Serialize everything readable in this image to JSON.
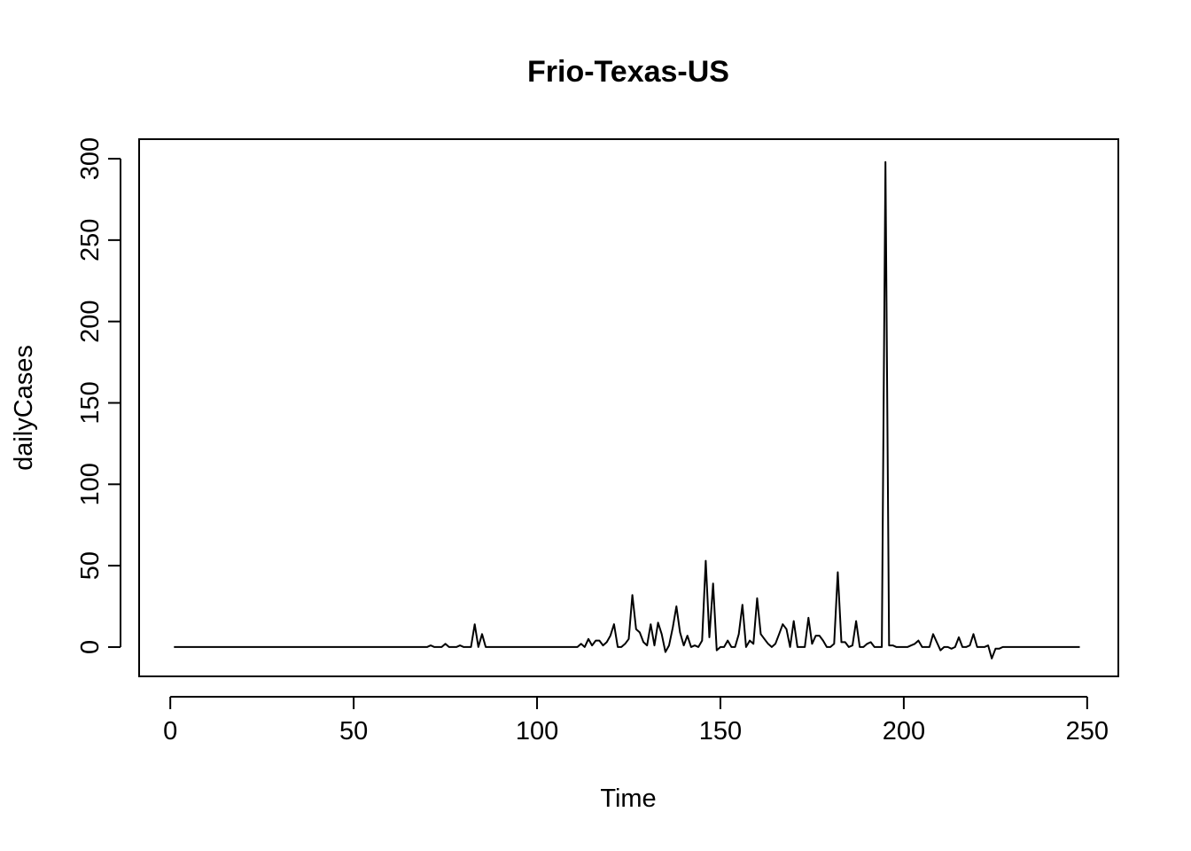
{
  "chart_data": {
    "type": "line",
    "title": "Frio-Texas-US",
    "xlabel": "Time",
    "ylabel": "dailyCases",
    "xlim": [
      -8.5,
      258.5
    ],
    "ylim": [
      -18,
      312
    ],
    "xticks": [
      0,
      50,
      100,
      150,
      200,
      250
    ],
    "yticks": [
      0,
      50,
      100,
      150,
      200,
      250,
      300
    ],
    "xtick_labels": [
      "0",
      "50",
      "100",
      "150",
      "200",
      "250"
    ],
    "ytick_labels": [
      "0",
      "50",
      "100",
      "150",
      "200",
      "250",
      "300"
    ],
    "line_color": "#000000",
    "grid": false,
    "legend": "none",
    "series": [
      {
        "x": [
          1,
          70,
          71,
          72,
          73,
          74,
          75,
          76,
          77,
          78,
          79,
          80,
          81,
          82,
          83,
          84,
          85,
          86,
          87,
          111,
          112,
          113,
          114,
          115,
          116,
          117,
          118,
          119,
          120,
          121,
          122,
          123,
          124,
          125,
          126,
          127,
          128,
          129,
          130,
          131,
          132,
          133,
          134,
          135,
          136,
          137,
          138,
          139,
          140,
          141,
          142,
          143,
          144,
          145,
          146,
          147,
          148,
          149,
          150,
          151,
          152,
          153,
          154,
          155,
          156,
          157,
          158,
          159,
          160,
          161,
          162,
          163,
          164,
          165,
          166,
          167,
          168,
          169,
          170,
          171,
          172,
          173,
          174,
          175,
          176,
          177,
          178,
          179,
          180,
          181,
          182,
          183,
          184,
          185,
          186,
          187,
          188,
          189,
          190,
          191,
          192,
          193,
          194,
          195,
          196,
          197,
          198,
          199,
          200,
          201,
          202,
          203,
          204,
          205,
          206,
          207,
          208,
          209,
          210,
          211,
          212,
          213,
          214,
          215,
          216,
          217,
          218,
          219,
          220,
          221,
          222,
          223,
          224,
          225,
          226,
          227,
          228,
          248
        ],
        "y": [
          0,
          0,
          1,
          0,
          0,
          0,
          2,
          0,
          0,
          0,
          1,
          0,
          0,
          0,
          14,
          0,
          8,
          0,
          0,
          0,
          2,
          0,
          5,
          1,
          4,
          4,
          1,
          3,
          7,
          14,
          0,
          0,
          2,
          5,
          32,
          11,
          9,
          3,
          1,
          14,
          1,
          15,
          8,
          -3,
          1,
          12,
          25,
          9,
          1,
          7,
          0,
          1,
          0,
          4,
          53,
          6,
          39,
          -2,
          0,
          0,
          4,
          0,
          0,
          8,
          26,
          0,
          4,
          2,
          30,
          8,
          5,
          2,
          0,
          2,
          8,
          14,
          11,
          0,
          16,
          0,
          0,
          0,
          18,
          2,
          7,
          7,
          4,
          0,
          0,
          2,
          46,
          3,
          3,
          0,
          1,
          16,
          0,
          0,
          2,
          3,
          0,
          0,
          0,
          298,
          1,
          1,
          0,
          0,
          0,
          0,
          1,
          2,
          4,
          0,
          0,
          0,
          8,
          3,
          -2,
          0,
          0,
          -1,
          0,
          6,
          0,
          0,
          1,
          8,
          0,
          0,
          0,
          1,
          -7,
          -1,
          -1,
          0,
          0,
          0
        ]
      }
    ]
  }
}
